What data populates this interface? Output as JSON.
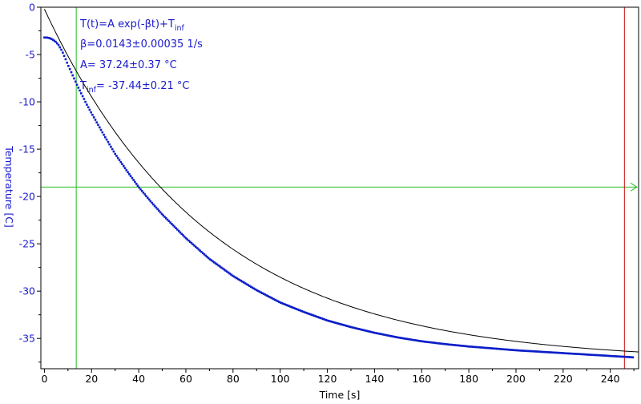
{
  "chart_data": {
    "type": "scatter",
    "title": "",
    "xlabel": "Time [s]",
    "ylabel": "Temperature [C]",
    "xlim": [
      -1.5,
      252
    ],
    "ylim": [
      -38.2,
      0
    ],
    "xticks": [
      0,
      20,
      40,
      60,
      80,
      100,
      120,
      140,
      160,
      180,
      200,
      220,
      240
    ],
    "yticks": [
      0,
      -5,
      -10,
      -15,
      -20,
      -25,
      -30,
      -35
    ],
    "grid": false,
    "fit": {
      "model": "T(t)=A exp(-βt)+T_inf",
      "beta": 0.0143,
      "beta_err": 0.00035,
      "A": 37.24,
      "A_err": 0.37,
      "T_inf": -37.44,
      "T_inf_err": 0.21
    },
    "series": [
      {
        "kind": "measured",
        "x": [
          0,
          1,
          2,
          3,
          4,
          5,
          6,
          7,
          8,
          9,
          10,
          12,
          14,
          16,
          18,
          20,
          25,
          30,
          35,
          40,
          45,
          50,
          60,
          70,
          80,
          90,
          100,
          110,
          120,
          130,
          140,
          150,
          160,
          170,
          180,
          190,
          200,
          210,
          220,
          230,
          240,
          250
        ],
        "y": [
          -3.2,
          -3.2,
          -3.25,
          -3.35,
          -3.5,
          -3.7,
          -4.0,
          -4.4,
          -4.9,
          -5.5,
          -6.1,
          -7.2,
          -8.3,
          -9.3,
          -10.3,
          -11.2,
          -13.4,
          -15.5,
          -17.3,
          -19.0,
          -20.5,
          -21.9,
          -24.4,
          -26.6,
          -28.4,
          -29.9,
          -31.2,
          -32.2,
          -33.1,
          -33.8,
          -34.4,
          -34.9,
          -35.3,
          -35.6,
          -35.85,
          -36.05,
          -36.25,
          -36.4,
          -36.55,
          -36.7,
          -36.85,
          -37.0
        ]
      }
    ],
    "markers": {
      "green_vertical_x": 13.5,
      "green_horizontal_y": -19.0,
      "red_vertical_x": 246
    },
    "colors": {
      "data": "#0b1ec8",
      "text": "#1a1acc",
      "fit": "#000000",
      "green": "#22bb22",
      "red": "#cc1111"
    }
  },
  "annotation": {
    "line1": "T(t)=A exp(-βt)+T",
    "line1_sub": "inf",
    "line2": "β=0.0143±0.00035 1/s",
    "line3": "A= 37.24±0.37 °C",
    "line4_main": "T",
    "line4_sub": "inf",
    "line4_rest": "= -37.44±0.21 °C"
  }
}
